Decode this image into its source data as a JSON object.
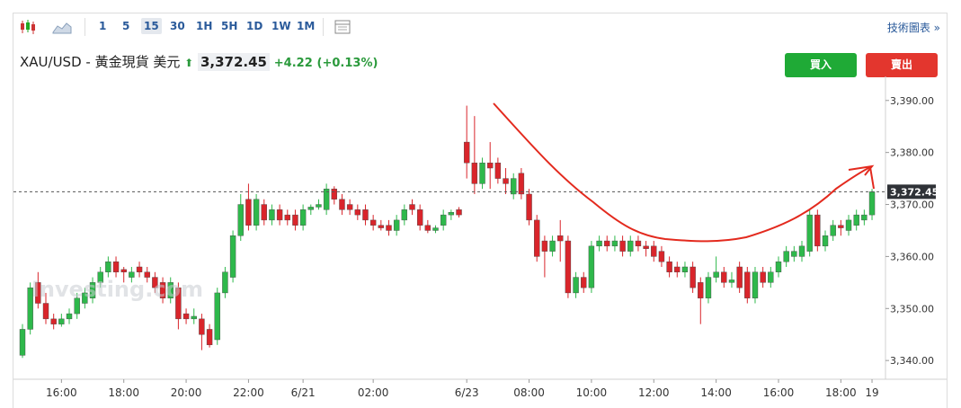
{
  "toolbar": {
    "intervals": [
      "1",
      "5",
      "15",
      "30",
      "1H",
      "5H",
      "1D",
      "1W",
      "1M"
    ],
    "selected": "15",
    "link": "技術圖表 »"
  },
  "header": {
    "symbol": "XAU/USD - 黃金現貨 美元",
    "change": "+4.22",
    "change_pct": "(+0.13%)",
    "buy": "買入",
    "sell": "賣出"
  },
  "chart_data": {
    "type": "candlestick",
    "watermark": "Investing.com",
    "categories": [
      null,
      null,
      null,
      null,
      null,
      "16:00",
      null,
      null,
      null,
      null,
      null,
      null,
      null,
      "18:00",
      null,
      null,
      null,
      null,
      null,
      null,
      null,
      "20:00",
      null,
      null,
      null,
      null,
      null,
      null,
      null,
      "22:00",
      null,
      null,
      null,
      null,
      null,
      null,
      "6/21",
      null,
      null,
      null,
      null,
      null,
      null,
      null,
      null,
      "02:00",
      null,
      null,
      null,
      null,
      null,
      null,
      null,
      null,
      null,
      null,
      null,
      "6/23",
      null,
      null,
      null,
      null,
      null,
      null,
      null,
      "08:00",
      null,
      null,
      null,
      null,
      null,
      null,
      null,
      "10:00",
      null,
      null,
      null,
      null,
      null,
      null,
      null,
      "12:00",
      null,
      null,
      null,
      null,
      null,
      null,
      null,
      "14:00",
      null,
      null,
      null,
      null,
      null,
      null,
      null,
      "16:00",
      null,
      null,
      null,
      null,
      null,
      null,
      null,
      "18:00",
      null,
      null,
      null,
      "19"
    ],
    "open": [
      3341,
      3346,
      3355,
      3351,
      3348,
      3347,
      3348,
      3349,
      3351,
      3352,
      3355,
      3357,
      3359,
      3357.5,
      3356,
      3358,
      3357,
      3356,
      3355,
      3352,
      3354,
      3349,
      3348,
      3348,
      3346,
      3344,
      3353,
      3356,
      3364,
      3371,
      3366,
      3370,
      3367,
      3369,
      3368,
      3368,
      3366,
      3369,
      3369.5,
      3369,
      3373,
      3371,
      3370,
      3369,
      3369,
      3367,
      3366,
      3366,
      3365,
      3367,
      3370,
      3369,
      3366,
      3365,
      3366,
      3368,
      3369,
      3382,
      3378,
      3374,
      3378,
      3378,
      3375,
      3372,
      3376,
      3372,
      3367,
      3363,
      3361,
      3364,
      3363,
      3353,
      3356,
      3354,
      3362,
      3363,
      3362,
      3363,
      3361,
      3363,
      3362,
      3362,
      3361,
      3359,
      3358,
      3357,
      3358,
      3355,
      3352,
      3356,
      3357,
      3355,
      3358,
      3357,
      3352,
      3357,
      3355,
      3357,
      3359,
      3360,
      3360,
      3361,
      3368,
      3362,
      3364,
      3366,
      3365,
      3366,
      3367,
      3368
    ],
    "high": [
      3347,
      3355,
      3357,
      3353,
      3349,
      3349,
      3350,
      3353,
      3354,
      3356,
      3358,
      3360,
      3360,
      3358,
      3358,
      3359,
      3358,
      3357,
      3356,
      3356,
      3355,
      3350,
      3350,
      3349,
      3347,
      3354,
      3358,
      3365,
      3372,
      3374,
      3372,
      3371,
      3370,
      3370,
      3369,
      3369,
      3370,
      3370,
      3371,
      3374,
      3373.5,
      3372,
      3371,
      3370,
      3370,
      3368,
      3367,
      3367,
      3368,
      3370,
      3371,
      3370,
      3367,
      3366,
      3369,
      3369,
      3369.5,
      3389,
      3387,
      3379,
      3382,
      3379,
      3377,
      3376,
      3377,
      3373,
      3368,
      3364,
      3364,
      3367,
      3364,
      3357,
      3357,
      3363,
      3364,
      3364,
      3364,
      3364,
      3364,
      3364,
      3363,
      3363,
      3362,
      3360,
      3359,
      3359,
      3359,
      3356,
      3357,
      3360,
      3358,
      3357,
      3359,
      3358,
      3358,
      3358,
      3358,
      3360,
      3362,
      3362,
      3363,
      3369,
      3369,
      3365,
      3367,
      3367,
      3368,
      3369,
      3369,
      3373
    ],
    "low": [
      3340.5,
      3345,
      3350,
      3347,
      3346,
      3346.5,
      3347,
      3348,
      3350,
      3351,
      3354,
      3356,
      3356,
      3355,
      3355,
      3356,
      3355,
      3353,
      3351,
      3351,
      3346,
      3347,
      3347,
      3342,
      3342.5,
      3343,
      3352,
      3355,
      3363,
      3365,
      3365,
      3366,
      3366,
      3366,
      3366,
      3365,
      3365,
      3368,
      3369,
      3368,
      3370,
      3368,
      3368,
      3367,
      3366,
      3365,
      3365,
      3364,
      3364,
      3366,
      3368,
      3365,
      3364.5,
      3364.5,
      3365,
      3367,
      3367.5,
      3375,
      3372,
      3373,
      3373,
      3374,
      3372,
      3371,
      3371,
      3366,
      3359,
      3356,
      3360,
      3359,
      3352,
      3352,
      3353,
      3353,
      3361,
      3361,
      3361,
      3360,
      3360,
      3361,
      3360,
      3359,
      3358,
      3356,
      3356,
      3356,
      3353,
      3347,
      3351,
      3355,
      3354,
      3354,
      3353,
      3351,
      3351,
      3354,
      3354,
      3356,
      3358,
      3359,
      3359,
      3360,
      3361,
      3361,
      3363,
      3364,
      3364,
      3365,
      3366,
      3367
    ],
    "close": [
      3346,
      3354,
      3351,
      3348,
      3347,
      3348,
      3349,
      3352,
      3353,
      3355,
      3357,
      3359,
      3357,
      3357,
      3357,
      3357,
      3356,
      3354,
      3352,
      3355,
      3348,
      3348,
      3348.5,
      3345,
      3343,
      3353,
      3357,
      3364,
      3370,
      3366,
      3371,
      3367,
      3369,
      3367,
      3367,
      3366,
      3369,
      3369.5,
      3370,
      3373,
      3371,
      3369,
      3369,
      3368,
      3367,
      3366,
      3365.5,
      3365,
      3367,
      3369,
      3369,
      3366,
      3365,
      3365.5,
      3368,
      3368.5,
      3368,
      3378,
      3374,
      3378,
      3377,
      3375,
      3374,
      3375,
      3372,
      3367,
      3360,
      3361,
      3363,
      3363,
      3353,
      3356,
      3354,
      3362,
      3363,
      3362,
      3363,
      3361,
      3363,
      3362,
      3361.5,
      3360,
      3359,
      3357,
      3357,
      3358,
      3354,
      3352,
      3356,
      3357,
      3355,
      3355.5,
      3354,
      3352,
      3357,
      3355,
      3357,
      3359,
      3361,
      3361,
      3362,
      3368,
      3362,
      3364,
      3366,
      3365.5,
      3367,
      3368,
      3368,
      3372.45
    ],
    "up_color": "#2eb84b",
    "down_color": "#d9252b",
    "last_price": {
      "value": 3372.45,
      "label": "3,372.45"
    },
    "ylim": [
      3336.4,
      3392.9
    ],
    "yticks": [
      {
        "value": 3340,
        "label": "3,340.00"
      },
      {
        "value": 3350,
        "label": "3,350.00"
      },
      {
        "value": 3360,
        "label": "3,360.00"
      },
      {
        "value": 3370,
        "label": "3,370.00"
      },
      {
        "value": 3380,
        "label": "3,380.00"
      },
      {
        "value": 3390,
        "label": "3,390.00"
      }
    ],
    "grid": false
  }
}
